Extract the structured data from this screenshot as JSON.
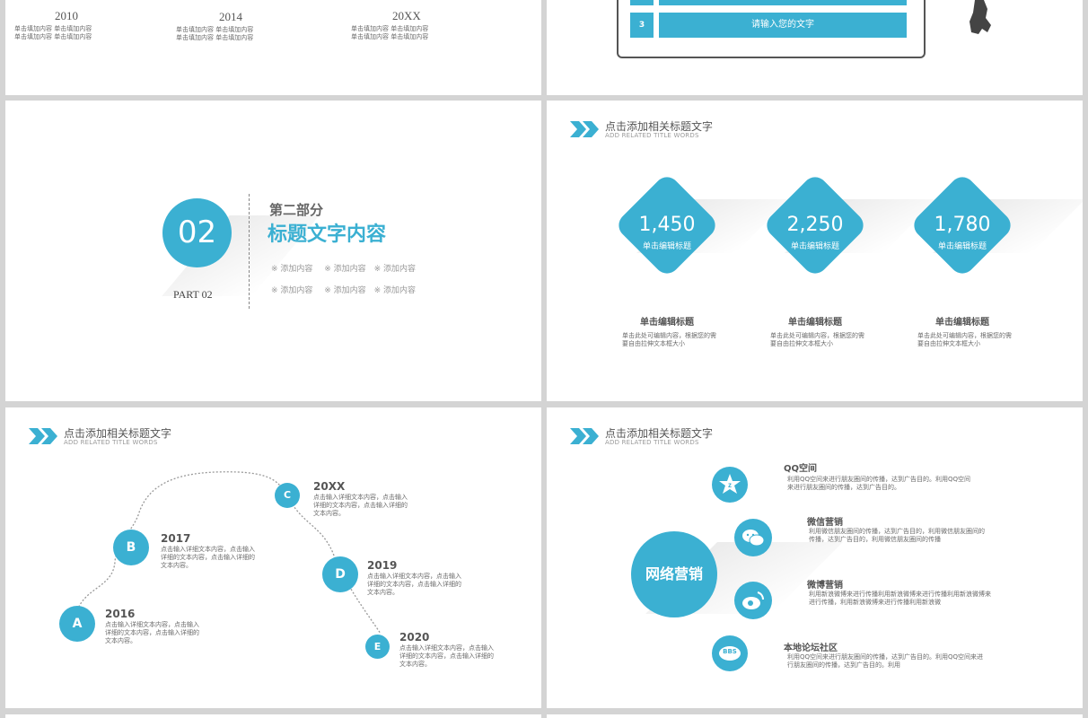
{
  "slide1": {
    "years": [
      {
        "year": "2010",
        "lines": [
          "单击填加内容  单击填加内容",
          "单击填加内容  单击填加内容"
        ]
      },
      {
        "year": "2014",
        "lines": [
          "单击填加内容  单击填加内容",
          "单击填加内容  单击填加内容"
        ]
      },
      {
        "year": "20XX",
        "lines": [
          "单击填加内容  单击填加内容",
          "单击填加内容  单击填加内容"
        ]
      }
    ]
  },
  "slide2": {
    "row_number": "3",
    "row_text": "请输入您的文字"
  },
  "slide3": {
    "number": "02",
    "part": "PART 02",
    "heading": "第二部分",
    "title": "标题文字内容",
    "items_row1": [
      "※ 添加内容",
      "※ 添加内容",
      "※ 添加内容"
    ],
    "items_row2": [
      "※ 添加内容",
      "※ 添加内容",
      "※ 添加内容"
    ]
  },
  "header": {
    "title": "点击添加相关标题文字",
    "subtitle": "ADD RELATED TITLE WORDS"
  },
  "slide4": {
    "cards": [
      {
        "value": "1,450",
        "label": "单击编辑标题",
        "title": "单击编辑标题",
        "desc1": "单击此处可编辑内容，根据您的需",
        "desc2": "要自由拉伸文本框大小"
      },
      {
        "value": "2,250",
        "label": "单击编辑标题",
        "title": "单击编辑标题",
        "desc1": "单击此处可编辑内容，根据您的需",
        "desc2": "要自由拉伸文本框大小"
      },
      {
        "value": "1,780",
        "label": "单击编辑标题",
        "title": "单击编辑标题",
        "desc1": "单击此处可编辑内容，根据您的需",
        "desc2": "要自由拉伸文本框大小"
      }
    ]
  },
  "slide5": {
    "nodes": [
      {
        "letter": "A",
        "year": "2016",
        "lines": [
          "点击输入详细文本内容，点击输入",
          "详细的文本内容，点击输入详细的",
          "文本内容。"
        ]
      },
      {
        "letter": "B",
        "year": "2017",
        "lines": [
          "点击输入详细文本内容，点击输入",
          "详细的文本内容，点击输入详细的",
          "文本内容。"
        ]
      },
      {
        "letter": "C",
        "year": "20XX",
        "lines": [
          "点击输入详细文本内容，点击输入",
          "详细的文本内容，点击输入详细的",
          "文本内容。"
        ]
      },
      {
        "letter": "D",
        "year": "2019",
        "lines": [
          "点击输入详细文本内容，点击输入",
          "详细的文本内容，点击输入详细的",
          "文本内容。"
        ]
      },
      {
        "letter": "E",
        "year": "2020",
        "lines": [
          "点击输入详细文本内容，点击输入",
          "详细的文本内容，点击输入详细的",
          "文本内容。"
        ]
      }
    ]
  },
  "slide6": {
    "center": "网络营销",
    "items": [
      {
        "title": "QQ空间",
        "icon": "qzone-star-icon",
        "lines": [
          "利用QQ空间来进行朋友圈间的传播，达到广告目的。利用QQ空间",
          "来进行朋友圈间的传播，达到广告目的。"
        ]
      },
      {
        "title": "微信营销",
        "icon": "wechat-icon",
        "lines": [
          "利用微信朋友圈间的传播，达到广告目的，利用微信朋友圈间的",
          "传播，达到广告目的，利用微信朋友圈间的传播"
        ]
      },
      {
        "title": "微博营销",
        "icon": "weibo-icon",
        "lines": [
          "利用新浪微博来进行传播利用新浪微博来进行传播利用新浪微博来",
          "进行传播，利用新浪微博来进行传播利用新浪微"
        ]
      },
      {
        "title": "本地论坛社区",
        "icon": "bbs-icon",
        "bbs": "BBS",
        "lines": [
          "利用QQ空间来进行朋友圈间的传播，达到广告目的。利用QQ空间来进",
          "行朋友圈间的传播，达到广告目的。利用"
        ]
      }
    ]
  }
}
